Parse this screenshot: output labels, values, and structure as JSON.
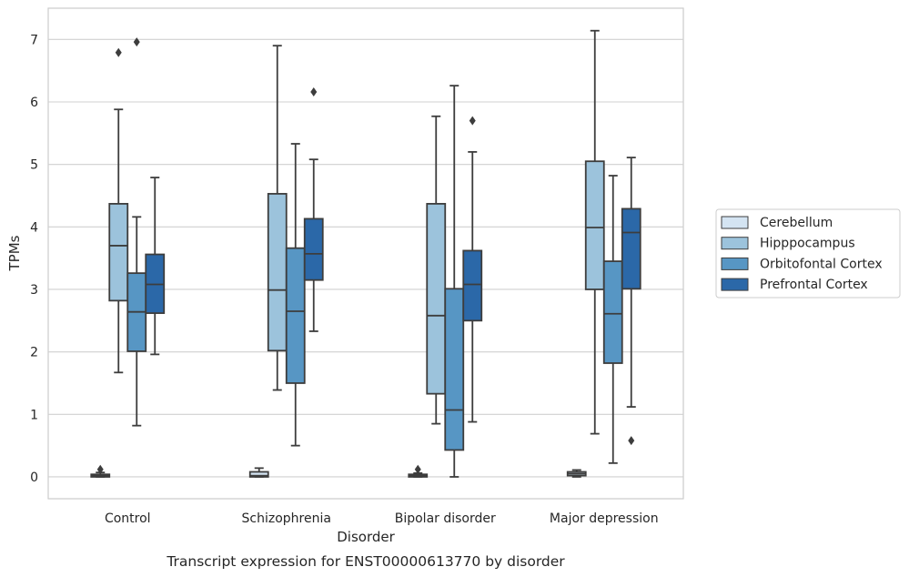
{
  "chart_data": {
    "type": "box",
    "xlabel": "Disorder",
    "ylabel": "TPMs",
    "caption": "Transcript expression for ENST00000613770 by disorder",
    "categories": [
      "Control",
      "Schizophrenia",
      "Bipolar disorder",
      "Major depression"
    ],
    "ylim": [
      -0.35,
      7.5
    ],
    "yticks": [
      0,
      1,
      2,
      3,
      4,
      5,
      6,
      7
    ],
    "grid": "horizontal",
    "legend_position": "right",
    "series": [
      {
        "name": "Cerebellum",
        "color": "#d4e4f2",
        "boxes": [
          {
            "min": 0.0,
            "q1": 0.0,
            "median": 0.02,
            "q3": 0.04,
            "max": 0.07,
            "outliers": [
              0.12
            ]
          },
          {
            "min": 0.0,
            "q1": 0.0,
            "median": 0.02,
            "q3": 0.08,
            "max": 0.14,
            "outliers": []
          },
          {
            "min": 0.0,
            "q1": 0.0,
            "median": 0.02,
            "q3": 0.04,
            "max": 0.06,
            "outliers": [
              0.12
            ]
          },
          {
            "min": 0.0,
            "q1": 0.02,
            "median": 0.05,
            "q3": 0.08,
            "max": 0.11,
            "outliers": []
          }
        ]
      },
      {
        "name": "Hipppocampus",
        "color": "#9cc3dc",
        "boxes": [
          {
            "min": 1.67,
            "q1": 2.82,
            "median": 3.7,
            "q3": 4.37,
            "max": 5.88,
            "outliers": [
              6.79
            ]
          },
          {
            "min": 1.39,
            "q1": 2.02,
            "median": 2.99,
            "q3": 4.53,
            "max": 6.9,
            "outliers": []
          },
          {
            "min": 0.85,
            "q1": 1.33,
            "median": 2.58,
            "q3": 4.37,
            "max": 5.77,
            "outliers": []
          },
          {
            "min": 0.69,
            "q1": 3.0,
            "median": 3.99,
            "q3": 5.05,
            "max": 7.14,
            "outliers": []
          }
        ]
      },
      {
        "name": "Orbitofontal Cortex",
        "color": "#5796c4",
        "boxes": [
          {
            "min": 0.82,
            "q1": 2.01,
            "median": 2.64,
            "q3": 3.26,
            "max": 4.16,
            "outliers": [
              6.96
            ]
          },
          {
            "min": 0.5,
            "q1": 1.5,
            "median": 2.65,
            "q3": 3.66,
            "max": 5.33,
            "outliers": []
          },
          {
            "min": 0.0,
            "q1": 0.43,
            "median": 1.07,
            "q3": 3.01,
            "max": 6.26,
            "outliers": []
          },
          {
            "min": 0.22,
            "q1": 1.82,
            "median": 2.61,
            "q3": 3.45,
            "max": 4.82,
            "outliers": []
          }
        ]
      },
      {
        "name": "Prefrontal Cortex",
        "color": "#2b68a8",
        "boxes": [
          {
            "min": 1.96,
            "q1": 2.62,
            "median": 3.08,
            "q3": 3.56,
            "max": 4.79,
            "outliers": []
          },
          {
            "min": 2.33,
            "q1": 3.15,
            "median": 3.57,
            "q3": 4.13,
            "max": 5.08,
            "outliers": [
              6.16
            ]
          },
          {
            "min": 0.88,
            "q1": 2.5,
            "median": 3.08,
            "q3": 3.62,
            "max": 5.2,
            "outliers": [
              5.7
            ]
          },
          {
            "min": 1.12,
            "q1": 3.01,
            "median": 3.91,
            "q3": 4.29,
            "max": 5.11,
            "outliers": [
              0.58
            ]
          }
        ]
      }
    ]
  }
}
